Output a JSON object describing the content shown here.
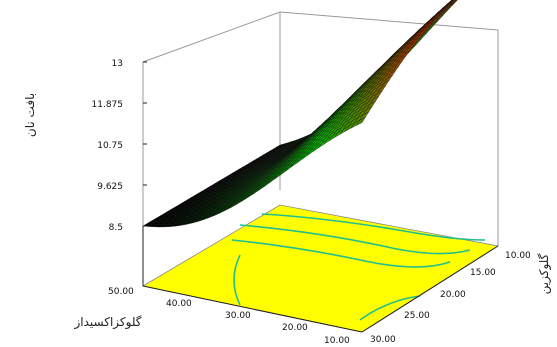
{
  "chart_data": {
    "type": "surface3d",
    "z_label": "بافت نان",
    "x_label": "گلوکزاکسیداز",
    "y_label": "گلوکزین",
    "z_ticks": [
      "8.5",
      "9.625",
      "10.75",
      "11.875",
      "13"
    ],
    "x_ticks": [
      "50.00",
      "40.00",
      "30.00",
      "20.00",
      "10.00"
    ],
    "y_ticks": [
      "10.00",
      "15.00",
      "20.00",
      "25.00",
      "30.00"
    ],
    "zlim": [
      8.5,
      13
    ],
    "xlim": [
      10,
      50
    ],
    "ylim": [
      10,
      30
    ],
    "surface_corner_values": {
      "x50_y10": 8.5,
      "x10_y10": 13.0,
      "x50_y30": 8.5,
      "x10_y30": 11.5
    },
    "colors": {
      "low": "#000000",
      "mid": "#00c000",
      "high": "#ff0000",
      "floor": "#ffff00",
      "contour": "#1fbf8f"
    }
  }
}
